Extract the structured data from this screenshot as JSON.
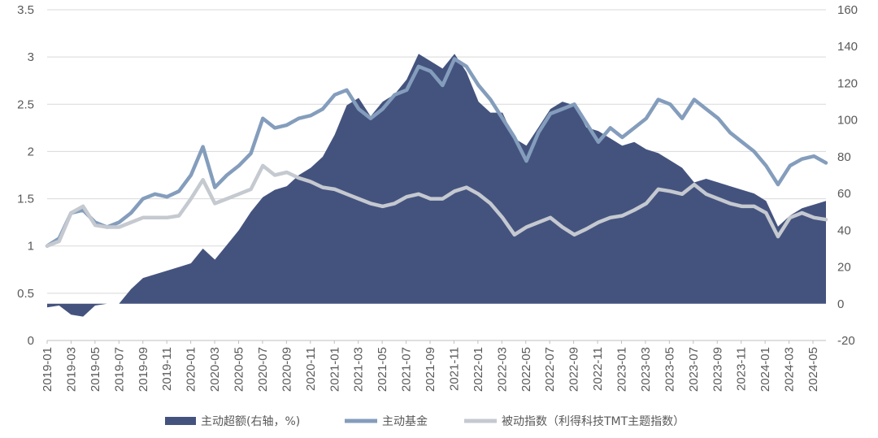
{
  "chart_data": {
    "type": "line",
    "title": "",
    "x_tick_labels": [
      "2019-01",
      "2019-03",
      "2019-05",
      "2019-07",
      "2019-09",
      "2019-11",
      "2020-01",
      "2020-03",
      "2020-05",
      "2020-07",
      "2020-09",
      "2020-11",
      "2021-01",
      "2021-03",
      "2021-05",
      "2021-07",
      "2021-09",
      "2021-11",
      "2022-01",
      "2022-03",
      "2022-05",
      "2022-07",
      "2022-09",
      "2022-11",
      "2023-01",
      "2023-03",
      "2023-05",
      "2023-07",
      "2023-09",
      "2023-11",
      "2024-01",
      "2024-03",
      "2024-05"
    ],
    "y_left": {
      "range": [
        0,
        3.5
      ],
      "ticks": [
        "0",
        "0.5",
        "1",
        "1.5",
        "2",
        "2.5",
        "3",
        "3.5"
      ]
    },
    "y_right": {
      "range": [
        -20,
        160
      ],
      "ticks": [
        "-20",
        "0",
        "20",
        "40",
        "60",
        "80",
        "100",
        "120",
        "140",
        "160"
      ]
    },
    "grid": "horizontal",
    "legend_position": "bottom",
    "x": [
      "2019-01",
      "2019-02",
      "2019-03",
      "2019-04",
      "2019-05",
      "2019-06",
      "2019-07",
      "2019-08",
      "2019-09",
      "2019-10",
      "2019-11",
      "2019-12",
      "2020-01",
      "2020-02",
      "2020-03",
      "2020-04",
      "2020-05",
      "2020-06",
      "2020-07",
      "2020-08",
      "2020-09",
      "2020-10",
      "2020-11",
      "2020-12",
      "2021-01",
      "2021-02",
      "2021-03",
      "2021-04",
      "2021-05",
      "2021-06",
      "2021-07",
      "2021-08",
      "2021-09",
      "2021-10",
      "2021-11",
      "2021-12",
      "2022-01",
      "2022-02",
      "2022-03",
      "2022-04",
      "2022-05",
      "2022-06",
      "2022-07",
      "2022-08",
      "2022-09",
      "2022-10",
      "2022-11",
      "2022-12",
      "2023-01",
      "2023-02",
      "2023-03",
      "2023-04",
      "2023-05",
      "2023-06",
      "2023-07",
      "2023-08",
      "2023-09",
      "2023-10",
      "2023-11",
      "2023-12",
      "2024-01",
      "2024-02",
      "2024-03",
      "2024-04",
      "2024-05",
      "2024-06"
    ],
    "series": [
      {
        "name": "主动超额(右轴，%)",
        "type": "area",
        "axis": "right",
        "color": "#44537E",
        "values": [
          -2,
          -1,
          -6,
          -7,
          -1,
          0,
          0,
          8,
          14,
          16,
          18,
          20,
          22,
          30,
          24,
          32,
          40,
          50,
          58,
          62,
          64,
          70,
          74,
          80,
          92,
          108,
          112,
          102,
          110,
          114,
          122,
          136,
          132,
          128,
          136,
          126,
          110,
          104,
          104,
          90,
          86,
          96,
          106,
          110,
          108,
          96,
          94,
          90,
          86,
          88,
          84,
          82,
          78,
          74,
          66,
          68,
          66,
          64,
          62,
          60,
          56,
          42,
          48,
          52,
          54,
          56
        ]
      },
      {
        "name": "主动基金",
        "type": "line",
        "axis": "left",
        "color": "#849DBC",
        "values": [
          1.0,
          1.08,
          1.35,
          1.38,
          1.25,
          1.2,
          1.25,
          1.35,
          1.5,
          1.55,
          1.52,
          1.58,
          1.75,
          2.05,
          1.62,
          1.75,
          1.85,
          1.98,
          2.35,
          2.25,
          2.28,
          2.35,
          2.38,
          2.45,
          2.6,
          2.65,
          2.45,
          2.35,
          2.45,
          2.6,
          2.65,
          2.9,
          2.85,
          2.7,
          2.98,
          2.9,
          2.7,
          2.55,
          2.35,
          2.15,
          1.9,
          2.2,
          2.4,
          2.45,
          2.5,
          2.3,
          2.1,
          2.25,
          2.15,
          2.25,
          2.35,
          2.55,
          2.5,
          2.35,
          2.55,
          2.45,
          2.35,
          2.2,
          2.1,
          2.0,
          1.85,
          1.65,
          1.85,
          1.92,
          1.95,
          1.88
        ]
      },
      {
        "name": "被动指数（利得科技TMT主题指数）",
        "type": "line",
        "axis": "left",
        "color": "#C5C9D0",
        "values": [
          1.0,
          1.05,
          1.35,
          1.42,
          1.22,
          1.2,
          1.2,
          1.25,
          1.3,
          1.3,
          1.3,
          1.32,
          1.5,
          1.7,
          1.45,
          1.5,
          1.55,
          1.6,
          1.85,
          1.75,
          1.78,
          1.72,
          1.68,
          1.62,
          1.6,
          1.55,
          1.5,
          1.45,
          1.42,
          1.45,
          1.52,
          1.55,
          1.5,
          1.5,
          1.58,
          1.62,
          1.55,
          1.45,
          1.3,
          1.12,
          1.2,
          1.25,
          1.3,
          1.2,
          1.12,
          1.18,
          1.25,
          1.3,
          1.32,
          1.38,
          1.45,
          1.6,
          1.58,
          1.55,
          1.65,
          1.55,
          1.5,
          1.45,
          1.42,
          1.42,
          1.35,
          1.1,
          1.3,
          1.35,
          1.3,
          1.28
        ]
      }
    ]
  },
  "legend": {
    "active_excess_label": "主动超额(右轴，%)",
    "active_fund_label": "主动基金",
    "passive_index_label": "被动指数（利得科技TMT主题指数）"
  }
}
